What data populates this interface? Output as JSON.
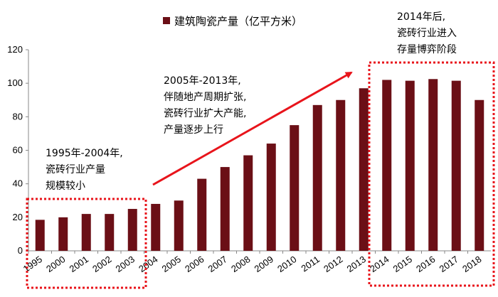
{
  "chart_data": {
    "type": "bar",
    "title": "",
    "legend": "建筑陶瓷产量（亿平方米）",
    "legend_placement": "top",
    "xlabel": "",
    "ylabel": "",
    "ylim": [
      0,
      120
    ],
    "yticks": [
      0,
      20,
      40,
      60,
      80,
      100,
      120
    ],
    "grid": false,
    "bar_color": "#6b0f16",
    "categories": [
      "1995",
      "2000",
      "2001",
      "2002",
      "2003",
      "2004",
      "2005",
      "2006",
      "2007",
      "2008",
      "2009",
      "2010",
      "2011",
      "2012",
      "2013",
      "2014",
      "2015",
      "2016",
      "2017",
      "2018"
    ],
    "values": [
      18.5,
      20,
      22,
      22,
      25,
      28,
      30,
      43,
      50,
      57,
      64,
      75,
      87,
      90,
      97,
      102,
      101.5,
      102.5,
      101.5,
      90
    ],
    "annotations": [
      {
        "id": "phase1",
        "lines": [
          "1995年-2004年,",
          "瓷砖行业产量",
          "规模较小"
        ],
        "range": [
          "1995",
          "2003"
        ]
      },
      {
        "id": "phase2",
        "lines": [
          "2005年-2013年,",
          "伴随地产周期扩张,",
          "瓷砖行业扩大产能,",
          "产量逐步上行"
        ]
      },
      {
        "id": "phase3",
        "lines": [
          "2014年后,",
          "瓷砖行业进入",
          "存量博弈阶段"
        ],
        "range": [
          "2014",
          "2018"
        ]
      }
    ],
    "annotation_color": "#e8141b"
  }
}
